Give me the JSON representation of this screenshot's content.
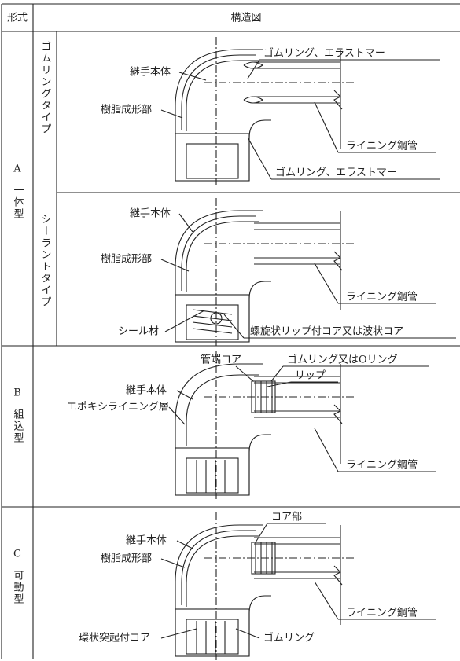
{
  "header": {
    "type_col": "形式",
    "diagram_col": "構造図"
  },
  "rows": [
    {
      "code": "A",
      "name": "一体型",
      "subtypes": [
        {
          "name": "ゴムリングタイプ",
          "labels": [
            "継手本体",
            "ゴムリング、エラストマー",
            "樹脂成形部",
            "ライニング鋼管",
            "ゴムリング、エラストマー"
          ]
        },
        {
          "name": "シーラントタイプ",
          "labels": [
            "継手本体",
            "樹脂成形部",
            "ライニング鋼管",
            "シール材",
            "螺旋状リップ付コア又は波状コア"
          ]
        }
      ]
    },
    {
      "code": "B",
      "name": "組込型",
      "labels": [
        "管端コア",
        "ゴムリング又はOリング",
        "リップ",
        "継手本体",
        "エポキシライニング層",
        "ライニング鋼管"
      ]
    },
    {
      "code": "C",
      "name": "可動型",
      "labels": [
        "コア部",
        "継手本体",
        "樹脂成形部",
        "ライニング鋼管",
        "環状突起付コア",
        "ゴムリング"
      ]
    }
  ]
}
